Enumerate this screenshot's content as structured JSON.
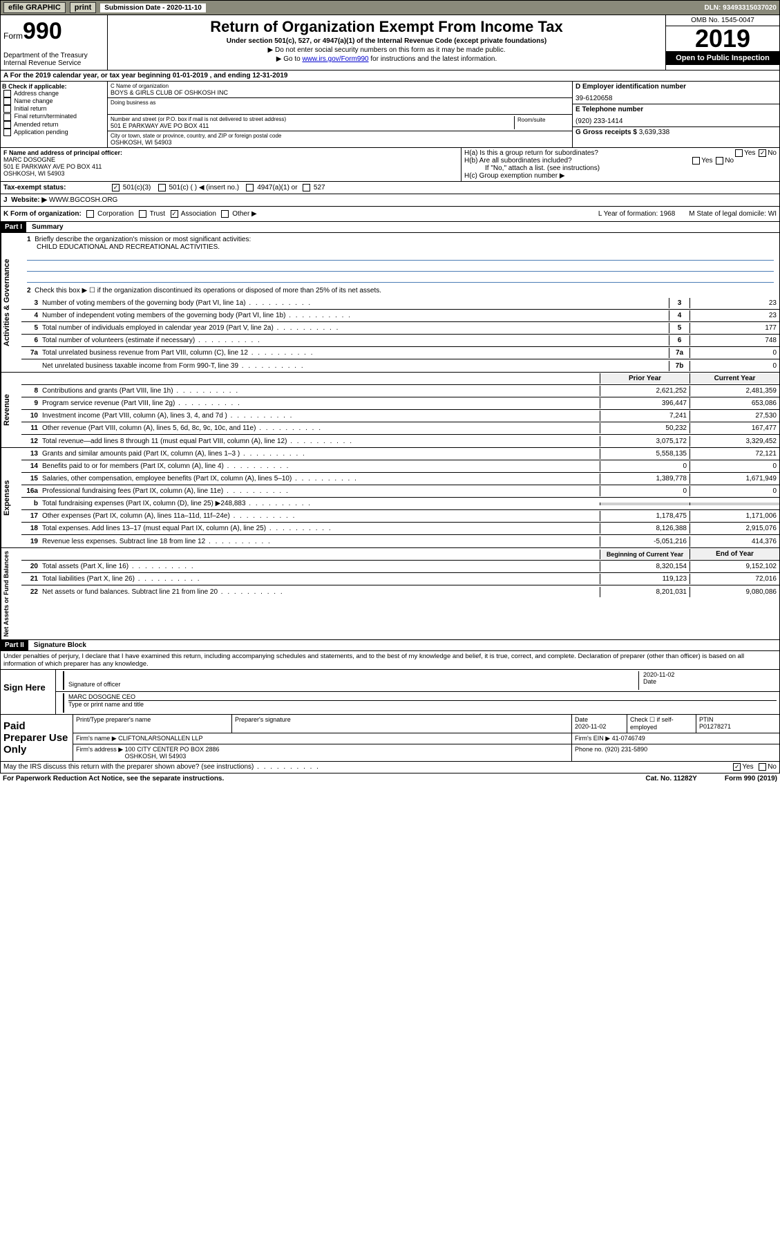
{
  "topbar": {
    "efile": "efile GRAPHIC",
    "print": "print",
    "subdate_label": "Submission Date - 2020-11-10",
    "dln": "DLN: 93493315037020"
  },
  "header": {
    "form_word": "Form",
    "form_num": "990",
    "dept": "Department of the Treasury\nInternal Revenue Service",
    "title": "Return of Organization Exempt From Income Tax",
    "subtitle": "Under section 501(c), 527, or 4947(a)(1) of the Internal Revenue Code (except private foundations)",
    "arrow1": "▶ Do not enter social security numbers on this form as it may be made public.",
    "arrow2_pre": "▶ Go to ",
    "arrow2_link": "www.irs.gov/Form990",
    "arrow2_post": " for instructions and the latest information.",
    "omb": "OMB No. 1545-0047",
    "year": "2019",
    "open": "Open to Public Inspection"
  },
  "line_a": "For the 2019 calendar year, or tax year beginning 01-01-2019     , and ending 12-31-2019",
  "box_b": {
    "header": "B Check if applicable:",
    "items": [
      "Address change",
      "Name change",
      "Initial return",
      "Final return/terminated",
      "Amended return",
      "Application pending"
    ]
  },
  "box_c": {
    "name_label": "C Name of organization",
    "name": "BOYS & GIRLS CLUB OF OSHKOSH INC",
    "dba_label": "Doing business as",
    "addr_label": "Number and street (or P.O. box if mail is not delivered to street address)",
    "addr": "501 E PARKWAY AVE PO BOX 411",
    "room_label": "Room/suite",
    "city_label": "City or town, state or province, country, and ZIP or foreign postal code",
    "city": "OSHKOSH, WI  54903"
  },
  "box_d": {
    "label": "D Employer identification number",
    "value": "39-6120658"
  },
  "box_e": {
    "label": "E Telephone number",
    "value": "(920) 233-1414"
  },
  "box_g": {
    "label": "G Gross receipts $",
    "value": "3,639,338"
  },
  "box_f": {
    "label": "F  Name and address of principal officer:",
    "name": "MARC DOSOGNE",
    "addr": "501 E PARKWAY AVE PO BOX 411\nOSHKOSH, WI  54903"
  },
  "box_h": {
    "ha": "H(a)  Is this a group return for subordinates?",
    "hb": "H(b)  Are all subordinates included?",
    "hb_note": "If \"No,\" attach a list. (see instructions)",
    "hc": "H(c)  Group exemption number ▶"
  },
  "status": {
    "label": "Tax-exempt status:",
    "opt1": "501(c)(3)",
    "opt2": "501(c) (   ) ◀ (insert no.)",
    "opt3": "4947(a)(1) or",
    "opt4": "527"
  },
  "website": {
    "label": "Website: ▶",
    "value": "WWW.BGCOSH.ORG"
  },
  "line_k": {
    "label": "K Form of organization:",
    "opts": [
      "Corporation",
      "Trust",
      "Association",
      "Other ▶"
    ],
    "l": "L Year of formation: 1968",
    "m": "M State of legal domicile: WI"
  },
  "part1": {
    "header": "Part I",
    "title": "Summary"
  },
  "summary": {
    "q1": "Briefly describe the organization's mission or most significant activities:",
    "mission": "CHILD EDUCATIONAL AND RECREATIONAL ACTIVITIES.",
    "q2": "Check this box ▶ ☐  if the organization discontinued its operations or disposed of more than 25% of its net assets.",
    "lines_gov": [
      {
        "n": "3",
        "t": "Number of voting members of the governing body (Part VI, line 1a)",
        "b": "3",
        "v": "23"
      },
      {
        "n": "4",
        "t": "Number of independent voting members of the governing body (Part VI, line 1b)",
        "b": "4",
        "v": "23"
      },
      {
        "n": "5",
        "t": "Total number of individuals employed in calendar year 2019 (Part V, line 2a)",
        "b": "5",
        "v": "177"
      },
      {
        "n": "6",
        "t": "Total number of volunteers (estimate if necessary)",
        "b": "6",
        "v": "748"
      },
      {
        "n": "7a",
        "t": "Total unrelated business revenue from Part VIII, column (C), line 12",
        "b": "7a",
        "v": "0"
      },
      {
        "n": "",
        "t": "Net unrelated business taxable income from Form 990-T, line 39",
        "b": "7b",
        "v": "0"
      }
    ],
    "col_prior": "Prior Year",
    "col_current": "Current Year",
    "revenue": [
      {
        "n": "8",
        "t": "Contributions and grants (Part VIII, line 1h)",
        "p": "2,621,252",
        "c": "2,481,359"
      },
      {
        "n": "9",
        "t": "Program service revenue (Part VIII, line 2g)",
        "p": "396,447",
        "c": "653,086"
      },
      {
        "n": "10",
        "t": "Investment income (Part VIII, column (A), lines 3, 4, and 7d )",
        "p": "7,241",
        "c": "27,530"
      },
      {
        "n": "11",
        "t": "Other revenue (Part VIII, column (A), lines 5, 6d, 8c, 9c, 10c, and 11e)",
        "p": "50,232",
        "c": "167,477"
      },
      {
        "n": "12",
        "t": "Total revenue—add lines 8 through 11 (must equal Part VIII, column (A), line 12)",
        "p": "3,075,172",
        "c": "3,329,452"
      }
    ],
    "expenses": [
      {
        "n": "13",
        "t": "Grants and similar amounts paid (Part IX, column (A), lines 1–3 )",
        "p": "5,558,135",
        "c": "72,121"
      },
      {
        "n": "14",
        "t": "Benefits paid to or for members (Part IX, column (A), line 4)",
        "p": "0",
        "c": "0"
      },
      {
        "n": "15",
        "t": "Salaries, other compensation, employee benefits (Part IX, column (A), lines 5–10)",
        "p": "1,389,778",
        "c": "1,671,949"
      },
      {
        "n": "16a",
        "t": "Professional fundraising fees (Part IX, column (A), line 11e)",
        "p": "0",
        "c": "0"
      },
      {
        "n": "b",
        "t": "Total fundraising expenses (Part IX, column (D), line 25) ▶248,883",
        "p": "",
        "c": ""
      },
      {
        "n": "17",
        "t": "Other expenses (Part IX, column (A), lines 11a–11d, 11f–24e)",
        "p": "1,178,475",
        "c": "1,171,006"
      },
      {
        "n": "18",
        "t": "Total expenses. Add lines 13–17 (must equal Part IX, column (A), line 25)",
        "p": "8,126,388",
        "c": "2,915,076"
      },
      {
        "n": "19",
        "t": "Revenue less expenses. Subtract line 18 from line 12",
        "p": "-5,051,216",
        "c": "414,376"
      }
    ],
    "col_begin": "Beginning of Current Year",
    "col_end": "End of Year",
    "netassets": [
      {
        "n": "20",
        "t": "Total assets (Part X, line 16)",
        "p": "8,320,154",
        "c": "9,152,102"
      },
      {
        "n": "21",
        "t": "Total liabilities (Part X, line 26)",
        "p": "119,123",
        "c": "72,016"
      },
      {
        "n": "22",
        "t": "Net assets or fund balances. Subtract line 21 from line 20",
        "p": "8,201,031",
        "c": "9,080,086"
      }
    ]
  },
  "part2": {
    "header": "Part II",
    "title": "Signature Block"
  },
  "perjury": "Under penalties of perjury, I declare that I have examined this return, including accompanying schedules and statements, and to the best of my knowledge and belief, it is true, correct, and complete. Declaration of preparer (other than officer) is based on all information of which preparer has any knowledge.",
  "sign": {
    "here": "Sign Here",
    "sig_label": "Signature of officer",
    "date": "2020-11-02",
    "date_label": "Date",
    "name": "MARC DOSOGNE CEO",
    "name_label": "Type or print name and title"
  },
  "paid": {
    "label": "Paid Preparer Use Only",
    "h1": "Print/Type preparer's name",
    "h2": "Preparer's signature",
    "h3": "Date",
    "h3v": "2020-11-02",
    "h4": "Check ☐ if self-employed",
    "h5": "PTIN",
    "h5v": "P01278271",
    "firm_label": "Firm's name      ▶",
    "firm": "CLIFTONLARSONALLEN LLP",
    "ein_label": "Firm's EIN ▶",
    "ein": "41-0746749",
    "addr_label": "Firm's address  ▶",
    "addr": "100 CITY CENTER PO BOX 2886\nOSHKOSH, WI  54903",
    "phone_label": "Phone no.",
    "phone": "(920) 231-5890"
  },
  "discuss": "May the IRS discuss this return with the preparer shown above? (see instructions)",
  "footer": {
    "pra": "For Paperwork Reduction Act Notice, see the separate instructions.",
    "cat": "Cat. No. 11282Y",
    "form": "Form 990 (2019)"
  }
}
